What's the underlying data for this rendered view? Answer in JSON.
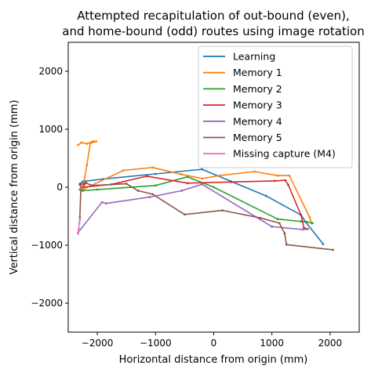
{
  "chart_data": {
    "type": "line",
    "title_line1": "Attempted recapitulation of out-bound (even),",
    "title_line2": "and home-bound (odd) routes using image rotation",
    "xlabel": "Horizontal distance from origin (mm)",
    "ylabel": "Vertical distance from origin (mm)",
    "xlim": [
      -2500,
      2500
    ],
    "ylim": [
      -2500,
      2500
    ],
    "xticks": [
      -2000,
      -1000,
      0,
      1000,
      2000
    ],
    "yticks": [
      -2000,
      -1000,
      0,
      1000,
      2000
    ],
    "grid": false,
    "legend_position": "upper right",
    "series": [
      {
        "name": "Learning",
        "color": "#1f77b4",
        "points": [
          [
            -2300,
            60
          ],
          [
            -2250,
            100
          ],
          [
            -1900,
            140
          ],
          [
            -1000,
            230
          ],
          [
            -200,
            310
          ],
          [
            300,
            100
          ],
          [
            900,
            -150
          ],
          [
            1500,
            -480
          ],
          [
            1580,
            -600
          ],
          [
            1880,
            -980
          ]
        ]
      },
      {
        "name": "Memory 1",
        "color": "#ff7f0e",
        "points": [
          [
            -2330,
            730
          ],
          [
            -2270,
            770
          ],
          [
            -2180,
            750
          ],
          [
            -2080,
            790
          ],
          [
            -2020,
            790
          ],
          [
            -2120,
            760
          ],
          [
            -2180,
            380
          ],
          [
            -2250,
            -40
          ],
          [
            -1550,
            290
          ],
          [
            -1050,
            340
          ],
          [
            -550,
            220
          ],
          [
            -200,
            150
          ],
          [
            100,
            200
          ],
          [
            700,
            270
          ],
          [
            1100,
            200
          ],
          [
            1300,
            200
          ],
          [
            1650,
            -520
          ],
          [
            1680,
            -620
          ]
        ]
      },
      {
        "name": "Memory 2",
        "color": "#2ca02c",
        "points": [
          [
            -2300,
            -40
          ],
          [
            -2250,
            -60
          ],
          [
            -2000,
            -40
          ],
          [
            -1000,
            30
          ],
          [
            -450,
            180
          ],
          [
            0,
            0
          ],
          [
            1100,
            -550
          ],
          [
            1500,
            -590
          ],
          [
            1600,
            -600
          ],
          [
            1700,
            -620
          ]
        ]
      },
      {
        "name": "Memory 3",
        "color": "#d62728",
        "points": [
          [
            -2300,
            40
          ],
          [
            -2200,
            70
          ],
          [
            -2250,
            0
          ],
          [
            -1750,
            50
          ],
          [
            -1150,
            190
          ],
          [
            -450,
            70
          ],
          [
            300,
            90
          ],
          [
            1050,
            110
          ],
          [
            1230,
            120
          ],
          [
            1280,
            40
          ],
          [
            1500,
            -480
          ],
          [
            1550,
            -700
          ],
          [
            1600,
            -720
          ]
        ]
      },
      {
        "name": "Memory 4",
        "color": "#9467bd",
        "points": [
          [
            -2330,
            -780
          ],
          [
            -1920,
            -260
          ],
          [
            -1850,
            -280
          ],
          [
            -1100,
            -170
          ],
          [
            -550,
            -60
          ],
          [
            -200,
            50
          ],
          [
            1000,
            -680
          ],
          [
            1530,
            -730
          ],
          [
            1620,
            -720
          ]
        ]
      },
      {
        "name": "Memory 5",
        "color": "#8c564b",
        "points": [
          [
            -2300,
            -520
          ],
          [
            -2280,
            50
          ],
          [
            -2200,
            80
          ],
          [
            -2100,
            30
          ],
          [
            -1500,
            60
          ],
          [
            -1300,
            -60
          ],
          [
            -1050,
            -120
          ],
          [
            -500,
            -470
          ],
          [
            150,
            -400
          ],
          [
            800,
            -530
          ],
          [
            1130,
            -620
          ],
          [
            1220,
            -800
          ],
          [
            1250,
            -990
          ],
          [
            2050,
            -1080
          ]
        ]
      },
      {
        "name": "Missing capture (M4)",
        "color": "#e377c2",
        "points": [
          [
            -2330,
            -800
          ],
          [
            -2320,
            -720
          ],
          [
            -2310,
            -620
          ],
          [
            -2300,
            -560
          ]
        ]
      }
    ]
  }
}
